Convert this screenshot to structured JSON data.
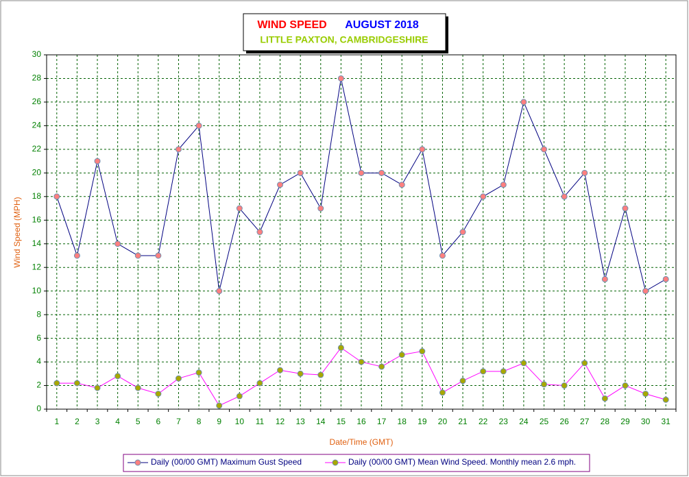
{
  "chart_data": {
    "type": "line",
    "title": "WIND SPEED",
    "title_date": "AUGUST 2018",
    "subtitle": "LITTLE PAXTON, CAMBRIDGESHIRE",
    "x_label": "Date/Time (GMT)",
    "y_label": "Wind Speed (MPH)",
    "categories": [
      "1",
      "2",
      "3",
      "4",
      "5",
      "6",
      "7",
      "8",
      "9",
      "10",
      "11",
      "12",
      "13",
      "14",
      "15",
      "16",
      "17",
      "18",
      "19",
      "20",
      "21",
      "22",
      "23",
      "24",
      "25",
      "26",
      "27",
      "28",
      "29",
      "30",
      "31"
    ],
    "series": [
      {
        "name": "Daily (00/00 GMT) Maximum Gust Speed",
        "color": "#000080",
        "marker_color": "#ff7f7f",
        "values": [
          18,
          13,
          21,
          14,
          13,
          13,
          22,
          24,
          10,
          17,
          15,
          19,
          20,
          17,
          28,
          20,
          20,
          19,
          22,
          13,
          15,
          18,
          19,
          26,
          22,
          18,
          20,
          11,
          17,
          10,
          11
        ]
      },
      {
        "name": "Daily (00/00 GMT) Mean Wind Speed. Monthly mean 2.6 mph.",
        "color": "#ff00ff",
        "marker_color": "#a8a800",
        "values": [
          2.2,
          2.2,
          1.8,
          2.8,
          1.8,
          1.3,
          2.6,
          3.1,
          0.3,
          1.1,
          2.2,
          3.3,
          3.0,
          2.9,
          5.2,
          4.0,
          3.6,
          4.6,
          4.9,
          1.4,
          2.4,
          3.2,
          3.2,
          3.9,
          2.1,
          2.0,
          3.9,
          0.9,
          2.0,
          1.3,
          0.8
        ]
      }
    ],
    "ylim": [
      0,
      30
    ],
    "yticks": [
      0,
      2,
      4,
      6,
      8,
      10,
      12,
      14,
      16,
      18,
      20,
      22,
      24,
      26,
      28,
      30
    ],
    "grid": true
  }
}
